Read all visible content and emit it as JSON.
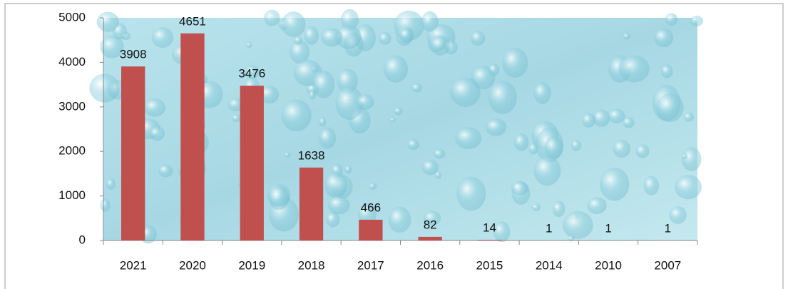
{
  "chart_data": {
    "type": "bar",
    "categories": [
      "2021",
      "2020",
      "2019",
      "2018",
      "2017",
      "2016",
      "2015",
      "2014",
      "2010",
      "2007"
    ],
    "values": [
      3908,
      4651,
      3476,
      1638,
      466,
      82,
      14,
      1,
      1,
      1
    ],
    "color": "#c0504d",
    "ylim": [
      0,
      5000
    ],
    "yticks": [
      0,
      1000,
      2000,
      3000,
      4000,
      5000
    ],
    "grid": false
  }
}
